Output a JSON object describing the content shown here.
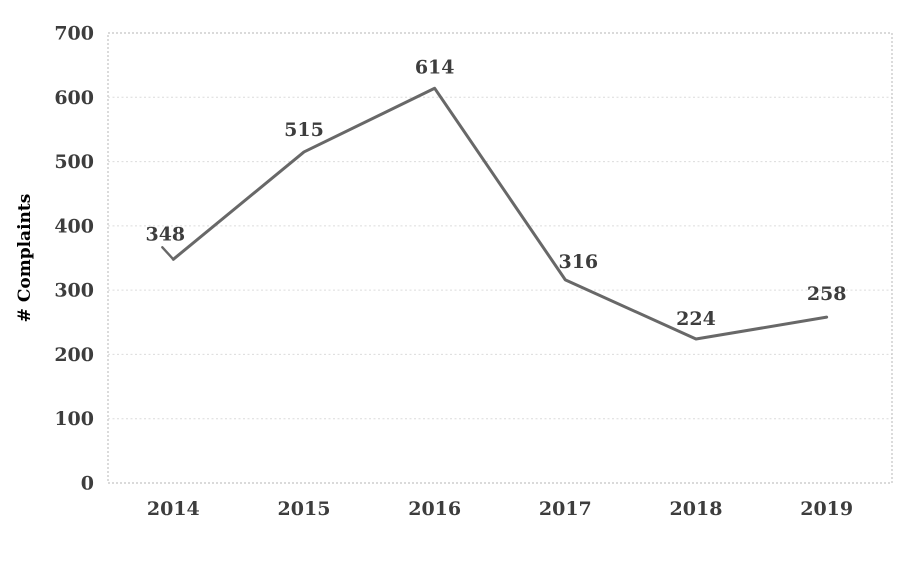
{
  "chart_data": {
    "type": "line",
    "title": "",
    "categories": [
      "2014",
      "2015",
      "2016",
      "2017",
      "2018",
      "2019"
    ],
    "values": [
      348,
      515,
      614,
      316,
      224,
      258
    ],
    "xlabel": "",
    "ylabel": "# Complaints",
    "ylim": [
      0,
      700
    ],
    "yticks": [
      0,
      100,
      200,
      300,
      400,
      500,
      600,
      700
    ],
    "grid": "horizontal-dotted",
    "legend": "none",
    "colors": {
      "line": "#686868",
      "text": "#3d3d3d",
      "gridline": "#dcdcdc",
      "plot_border": "#c3c3c3",
      "background": "#ffffff"
    }
  }
}
